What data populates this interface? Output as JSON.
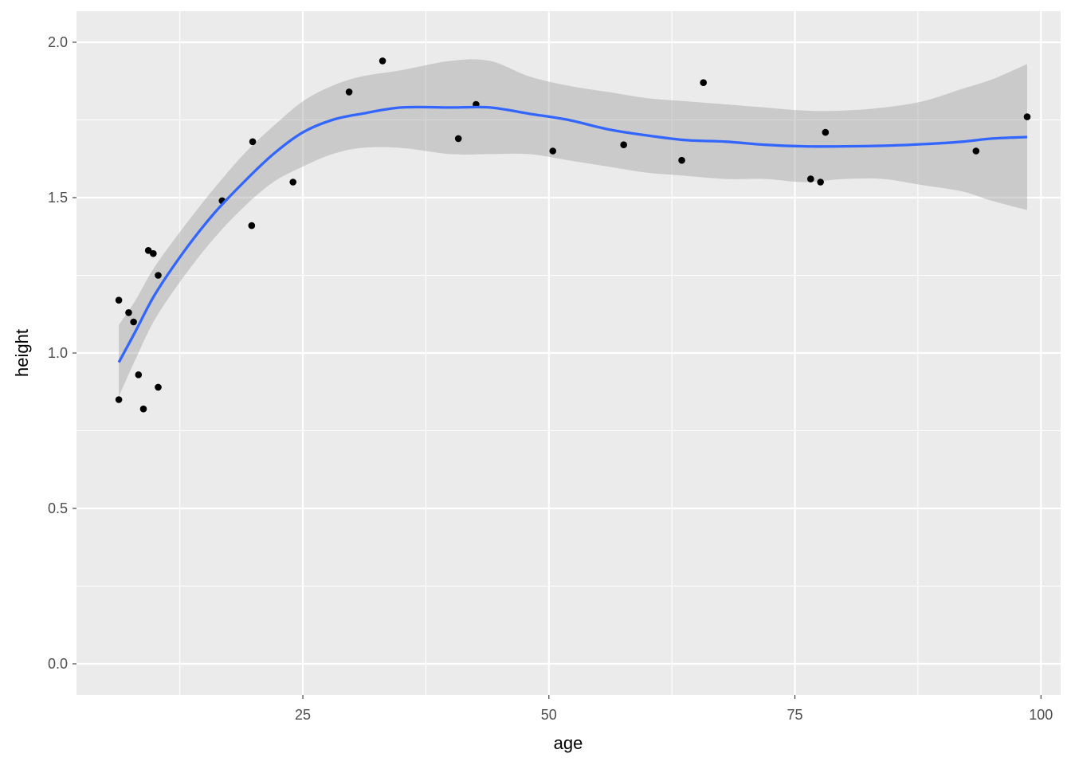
{
  "chart_data": {
    "type": "scatter",
    "xlabel": "age",
    "ylabel": "height",
    "xlim": [
      2,
      102
    ],
    "ylim": [
      -0.1,
      2.1
    ],
    "x_ticks": [
      25,
      50,
      75,
      100
    ],
    "x_tick_labels": [
      "25",
      "50",
      "75",
      "100"
    ],
    "y_ticks": [
      0.0,
      0.5,
      1.0,
      1.5,
      2.0
    ],
    "y_tick_labels": [
      "0.0",
      "0.5",
      "1.0",
      "1.5",
      "2.0"
    ],
    "grid": true,
    "panel_background": "#ebebeb",
    "grid_color": "#ffffff",
    "point_color": "#000000",
    "smooth_color": "#3366ff",
    "ribbon_color": "#c8c8c8",
    "points": [
      {
        "x": 6.3,
        "y": 0.85
      },
      {
        "x": 6.3,
        "y": 1.17
      },
      {
        "x": 7.3,
        "y": 1.13
      },
      {
        "x": 7.8,
        "y": 1.1
      },
      {
        "x": 8.3,
        "y": 0.93
      },
      {
        "x": 8.8,
        "y": 0.82
      },
      {
        "x": 9.3,
        "y": 1.33
      },
      {
        "x": 9.8,
        "y": 1.32
      },
      {
        "x": 10.3,
        "y": 1.25
      },
      {
        "x": 10.3,
        "y": 0.89
      },
      {
        "x": 16.8,
        "y": 1.49
      },
      {
        "x": 19.8,
        "y": 1.41
      },
      {
        "x": 19.9,
        "y": 1.68
      },
      {
        "x": 24.0,
        "y": 1.55
      },
      {
        "x": 29.7,
        "y": 1.84
      },
      {
        "x": 33.1,
        "y": 1.94
      },
      {
        "x": 40.8,
        "y": 1.69
      },
      {
        "x": 42.6,
        "y": 1.8
      },
      {
        "x": 50.4,
        "y": 1.65
      },
      {
        "x": 57.6,
        "y": 1.67
      },
      {
        "x": 63.5,
        "y": 1.62
      },
      {
        "x": 65.7,
        "y": 1.87
      },
      {
        "x": 76.6,
        "y": 1.56
      },
      {
        "x": 77.6,
        "y": 1.55
      },
      {
        "x": 78.1,
        "y": 1.71
      },
      {
        "x": 93.4,
        "y": 1.65
      },
      {
        "x": 98.6,
        "y": 1.76
      }
    ],
    "smooth": [
      {
        "x": 6.3,
        "y": 0.97,
        "lower": 0.86,
        "upper": 1.09
      },
      {
        "x": 8,
        "y": 1.07,
        "lower": 0.98,
        "upper": 1.17
      },
      {
        "x": 10,
        "y": 1.19,
        "lower": 1.11,
        "upper": 1.28
      },
      {
        "x": 13,
        "y": 1.33,
        "lower": 1.25,
        "upper": 1.41
      },
      {
        "x": 16,
        "y": 1.45,
        "lower": 1.37,
        "upper": 1.53
      },
      {
        "x": 19,
        "y": 1.55,
        "lower": 1.47,
        "upper": 1.64
      },
      {
        "x": 22,
        "y": 1.64,
        "lower": 1.55,
        "upper": 1.73
      },
      {
        "x": 25,
        "y": 1.71,
        "lower": 1.6,
        "upper": 1.81
      },
      {
        "x": 28,
        "y": 1.75,
        "lower": 1.64,
        "upper": 1.86
      },
      {
        "x": 31,
        "y": 1.77,
        "lower": 1.66,
        "upper": 1.89
      },
      {
        "x": 35,
        "y": 1.79,
        "lower": 1.66,
        "upper": 1.91
      },
      {
        "x": 40,
        "y": 1.79,
        "lower": 1.64,
        "upper": 1.94
      },
      {
        "x": 44,
        "y": 1.79,
        "lower": 1.64,
        "upper": 1.94
      },
      {
        "x": 48,
        "y": 1.77,
        "lower": 1.64,
        "upper": 1.89
      },
      {
        "x": 52,
        "y": 1.75,
        "lower": 1.62,
        "upper": 1.86
      },
      {
        "x": 56,
        "y": 1.72,
        "lower": 1.6,
        "upper": 1.84
      },
      {
        "x": 60,
        "y": 1.7,
        "lower": 1.58,
        "upper": 1.82
      },
      {
        "x": 64,
        "y": 1.685,
        "lower": 1.57,
        "upper": 1.81
      },
      {
        "x": 68,
        "y": 1.68,
        "lower": 1.56,
        "upper": 1.8
      },
      {
        "x": 72,
        "y": 1.67,
        "lower": 1.56,
        "upper": 1.79
      },
      {
        "x": 76,
        "y": 1.665,
        "lower": 1.55,
        "upper": 1.78
      },
      {
        "x": 80,
        "y": 1.665,
        "lower": 1.56,
        "upper": 1.78
      },
      {
        "x": 84,
        "y": 1.667,
        "lower": 1.56,
        "upper": 1.79
      },
      {
        "x": 88,
        "y": 1.672,
        "lower": 1.54,
        "upper": 1.81
      },
      {
        "x": 92,
        "y": 1.68,
        "lower": 1.52,
        "upper": 1.85
      },
      {
        "x": 95,
        "y": 1.69,
        "lower": 1.49,
        "upper": 1.88
      },
      {
        "x": 98.6,
        "y": 1.695,
        "lower": 1.46,
        "upper": 1.93
      }
    ]
  }
}
